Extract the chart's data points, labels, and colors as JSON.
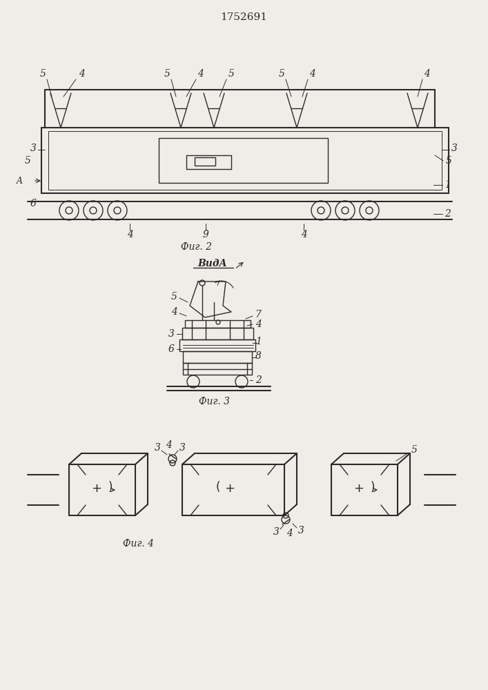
{
  "title": "1752691",
  "bg_color": "#f0ede8",
  "line_color": "#2a2a2a",
  "fig2_label": "Фиг. 2",
  "fig3_label": "Фиг. 3",
  "fig4_label": "Фиг. 4",
  "vida_label": "ВидА"
}
